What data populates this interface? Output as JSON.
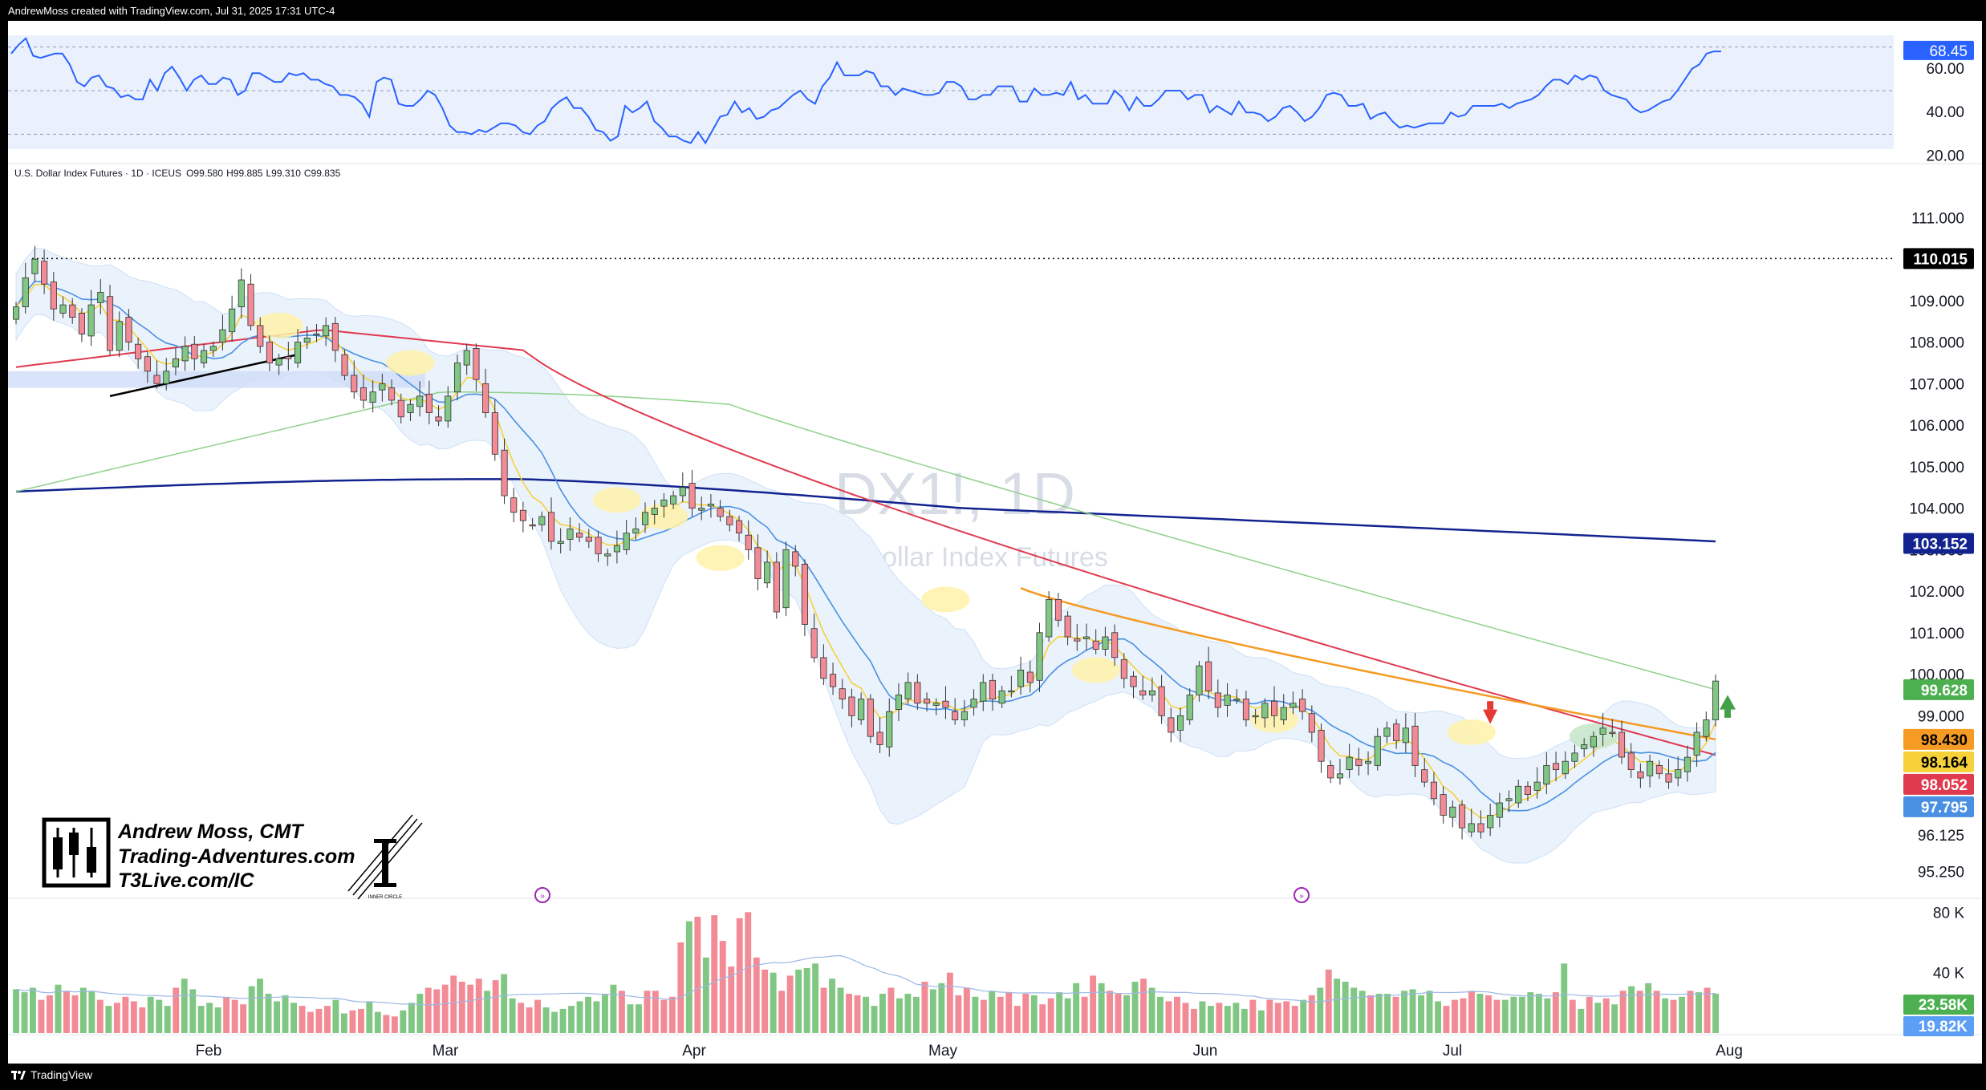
{
  "header": {
    "created_by": "AndrewMoss created with TradingView.com, Jul 31, 2025 17:31 UTC-4"
  },
  "footer": {
    "brand": "TradingView"
  },
  "symbol_line": {
    "name": "U.S. Dollar Index Futures · 1D · ICEUS",
    "open": "O99.580",
    "high": "H99.885",
    "low": "L99.310",
    "close": "C99.835"
  },
  "watermark": {
    "symbol": "DX1!, 1D",
    "description": "U.S. Dollar Index Futures"
  },
  "branding": {
    "line1": "Andrew Moss, CMT",
    "line2": "Trading-Adventures.com",
    "line3": "T3Live.com/IC",
    "logo2_caption": "INNER CIRCLE"
  },
  "colors": {
    "up": "#81c784",
    "down": "#f28b96",
    "ema5": "#f6d13a",
    "sma10": "#4a90e2",
    "sma20": "#e03a4e",
    "sma50": "#8fd18a",
    "sma200": "#12238f",
    "orange_avg": "#f59a23",
    "rsi": "#2962ff"
  },
  "chart_data": [
    {
      "type": "line",
      "name_role": "rsi_panel",
      "y_ticks": [
        "60.00",
        "40.00",
        "20.00"
      ],
      "ylim": [
        18,
        82
      ],
      "bands": [
        70,
        50,
        30
      ],
      "last_value_label": "68.45",
      "values": [
        67,
        71,
        74,
        66,
        65,
        66,
        67,
        67,
        62,
        54,
        52,
        56,
        57,
        52,
        51,
        47,
        48,
        46,
        46,
        55,
        50,
        58,
        61,
        56,
        50,
        55,
        57,
        53,
        53,
        56,
        55,
        48,
        50,
        58,
        58,
        56,
        54,
        54,
        58,
        57,
        58,
        55,
        55,
        53,
        52,
        48,
        48,
        47,
        44,
        38,
        54,
        56,
        55,
        44,
        43,
        43,
        46,
        50,
        48,
        42,
        34,
        31,
        31,
        30,
        32,
        31,
        33,
        35,
        35,
        34,
        31,
        30,
        34,
        36,
        42,
        45,
        47,
        42,
        42,
        38,
        32,
        31,
        27,
        29,
        43,
        40,
        42,
        45,
        36,
        33,
        29,
        29,
        27,
        26,
        31,
        26,
        32,
        38,
        39,
        45,
        40,
        42,
        37,
        38,
        41,
        42,
        45,
        48,
        50,
        46,
        44,
        52,
        56,
        63,
        57,
        57,
        57,
        59,
        58,
        52,
        52,
        48,
        51,
        50,
        49,
        48,
        48,
        49,
        54,
        54,
        52,
        46,
        46,
        48,
        48,
        52,
        52,
        52,
        45,
        45,
        51,
        48,
        48,
        49,
        48,
        54,
        46,
        48,
        44,
        44,
        44,
        50,
        47,
        41,
        47,
        43,
        43,
        46,
        50,
        50,
        50,
        46,
        48,
        48,
        40,
        43,
        41,
        39,
        45,
        40,
        40,
        39,
        36,
        38,
        42,
        43,
        40,
        36,
        38,
        42,
        48,
        49,
        48,
        43,
        43,
        44,
        37,
        39,
        40,
        36,
        33,
        34,
        33,
        34,
        35,
        35,
        35,
        40,
        38,
        39,
        43,
        43,
        43,
        43,
        44,
        42,
        44,
        45,
        46,
        48,
        52,
        55,
        55,
        53,
        57,
        55,
        57,
        56,
        50,
        48,
        47,
        46,
        42,
        40,
        41,
        43,
        45,
        46,
        50,
        55,
        60,
        62,
        67,
        68,
        68
      ]
    },
    {
      "type": "candlestick",
      "name_role": "main_price",
      "x_ticks": [
        "Feb",
        "Mar",
        "Apr",
        "May",
        "Jun",
        "Jul",
        "Aug"
      ],
      "y_ticks": [
        "111.000",
        "110.000",
        "109.000",
        "108.000",
        "107.000",
        "106.000",
        "105.000",
        "104.000",
        "103.000",
        "102.000",
        "101.000",
        "100.000",
        "99.000",
        "96.125",
        "95.250"
      ],
      "ylim": [
        94.6,
        111.8
      ],
      "dotted_level": 110.015,
      "price_labels": [
        {
          "text": "110.015",
          "value": 110.015,
          "bg": "#000000",
          "fg": "#ffffff"
        },
        {
          "text": "103.152",
          "value": 103.152,
          "bg": "#12238f",
          "fg": "#ffffff"
        },
        {
          "text": "99.628",
          "value": 99.628,
          "bg": "#4caf50",
          "fg": "#ffffff"
        },
        {
          "text": "98.430",
          "value": 98.43,
          "bg": "#f59a23",
          "fg": "#000000"
        },
        {
          "text": "98.164",
          "value": 98.164,
          "bg": "#f6d13a",
          "fg": "#000000"
        },
        {
          "text": "98.052",
          "value": 98.052,
          "bg": "#e03a4e",
          "fg": "#ffffff"
        },
        {
          "text": "97.795",
          "value": 97.795,
          "bg": "#4a90e2",
          "fg": "#ffffff"
        }
      ],
      "closes": [
        108.85,
        109.55,
        110.0,
        109.4,
        108.8,
        108.9,
        108.6,
        108.2,
        108.9,
        109.2,
        107.8,
        108.5,
        108.0,
        107.6,
        107.3,
        107.0,
        107.3,
        107.6,
        107.9,
        107.6,
        107.8,
        107.9,
        108.3,
        108.8,
        109.5,
        108.4,
        107.9,
        107.5,
        107.6,
        107.6,
        108.0,
        108.1,
        108.2,
        108.4,
        107.8,
        107.2,
        106.8,
        106.6,
        106.8,
        107.0,
        106.6,
        106.2,
        106.5,
        106.7,
        106.3,
        106.1,
        106.7,
        107.5,
        107.8,
        107.1,
        106.3,
        105.3,
        104.3,
        103.9,
        103.7,
        103.6,
        103.8,
        103.2,
        103.2,
        103.5,
        103.3,
        103.2,
        102.9,
        102.9,
        103.1,
        103.4,
        103.5,
        103.9,
        104.0,
        104.2,
        104.3,
        104.5,
        104.0,
        104.0,
        104.1,
        103.8,
        103.6,
        103.4,
        103.0,
        102.3,
        102.7,
        101.5,
        103.0,
        102.6,
        101.2,
        100.4,
        99.9,
        99.7,
        99.4,
        99.0,
        99.4,
        98.5,
        98.3,
        99.1,
        99.5,
        99.8,
        99.3,
        99.3,
        99.3,
        99.2,
        98.9,
        99.1,
        99.4,
        99.8,
        99.4,
        99.6,
        99.6,
        100.1,
        99.8,
        101.0,
        101.8,
        101.3,
        100.9,
        100.8,
        100.9,
        100.6,
        100.9,
        100.4,
        99.9,
        99.7,
        99.5,
        99.6,
        99.0,
        98.6,
        99.0,
        99.5,
        100.2,
        99.6,
        99.2,
        99.5,
        99.4,
        98.9,
        99.0,
        99.3,
        99.0,
        99.2,
        99.3,
        99.1,
        98.6,
        97.9,
        97.5,
        97.6,
        98.0,
        97.8,
        97.9,
        98.5,
        98.7,
        98.4,
        98.7,
        97.8,
        97.4,
        97.0,
        96.6,
        96.8,
        96.3,
        96.4,
        96.2,
        96.6,
        96.9,
        97.0,
        97.3,
        97.1,
        97.4,
        97.8,
        97.7,
        97.9,
        98.1,
        98.3,
        98.5,
        98.7,
        98.6,
        98.0,
        97.7,
        97.5,
        97.9,
        97.6,
        97.4,
        97.7,
        98.0,
        98.6,
        98.9,
        99.835
      ]
    },
    {
      "type": "bar",
      "name_role": "volume_panel",
      "y_ticks": [
        "80 K",
        "40 K"
      ],
      "ylim": [
        0,
        86
      ],
      "value_labels": [
        {
          "text": "23.58K",
          "value": 23.58,
          "bg": "#4caf50"
        },
        {
          "text": "19.82K",
          "value": 19.82,
          "bg": "#5a9ef5"
        }
      ],
      "values": [
        29,
        27,
        30,
        22,
        25,
        32,
        28,
        25,
        30,
        28,
        22,
        18,
        20,
        24,
        21,
        17,
        24,
        22,
        18,
        30,
        36,
        29,
        18,
        20,
        17,
        24,
        22,
        19,
        31,
        36,
        26,
        21,
        25,
        20,
        18,
        14,
        16,
        18,
        22,
        13,
        15,
        16,
        21,
        14,
        12,
        11,
        15,
        20,
        26,
        30,
        29,
        32,
        38,
        34,
        32,
        36,
        28,
        35,
        39,
        23,
        20,
        17,
        22,
        17,
        14,
        16,
        18,
        21,
        24,
        21,
        26,
        32,
        28,
        19,
        19,
        28,
        28,
        22,
        24,
        60,
        74,
        77,
        50,
        78,
        61,
        44,
        76,
        80,
        50,
        42,
        40,
        28,
        38,
        42,
        43,
        46,
        30,
        36,
        30,
        26,
        25,
        24,
        18,
        26,
        30,
        23,
        26,
        24,
        34,
        29,
        33,
        40,
        25,
        30,
        24,
        22,
        28,
        24,
        27,
        18,
        26,
        25,
        19,
        23,
        27,
        23,
        33,
        24,
        38,
        33,
        28,
        26,
        25,
        34,
        36,
        30,
        24,
        21,
        24,
        20,
        16,
        21,
        18,
        20,
        18,
        20,
        16,
        22,
        15,
        22,
        20,
        21,
        18,
        22,
        25,
        30,
        42,
        36,
        34,
        30,
        28,
        25,
        26,
        26,
        24,
        28,
        29,
        25,
        28,
        21,
        18,
        22,
        23,
        28,
        26,
        25,
        22,
        22,
        24,
        24,
        27,
        26,
        23,
        27,
        46,
        22,
        16,
        24,
        20,
        23,
        19,
        28,
        31,
        28,
        33,
        28,
        23,
        22,
        24,
        28,
        27,
        30,
        26
      ]
    }
  ]
}
